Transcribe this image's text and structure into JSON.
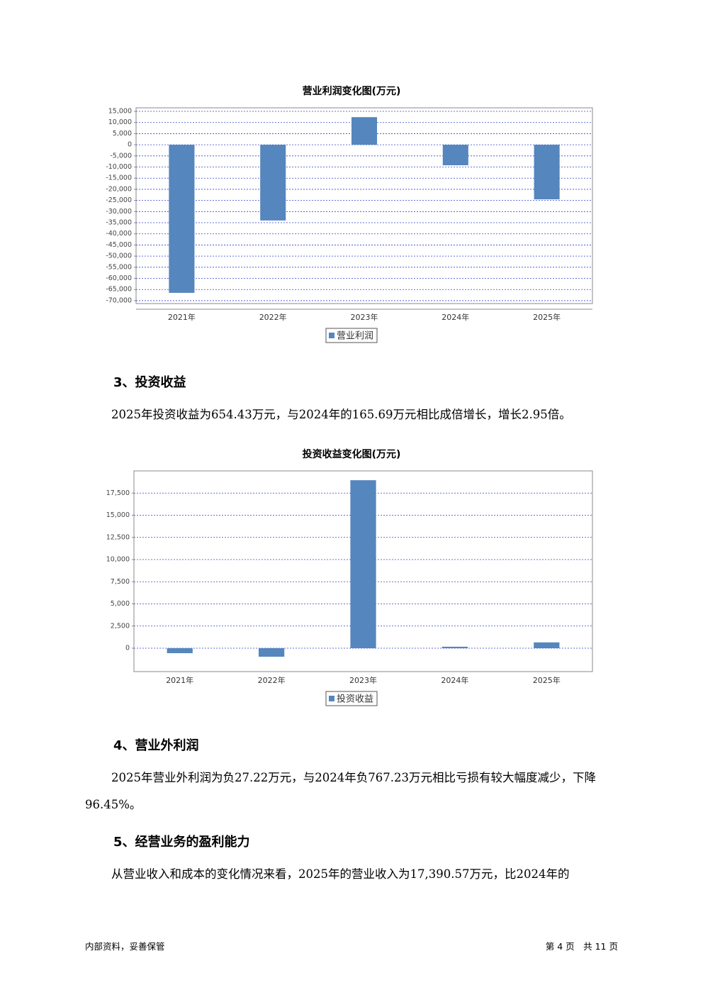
{
  "chart_data": [
    {
      "type": "bar",
      "title": "营业利润变化图(万元)",
      "categories": [
        "2021年",
        "2022年",
        "2023年",
        "2024年",
        "2025年"
      ],
      "series": [
        {
          "name": "营业利润",
          "color": "#5586bd",
          "values": [
            -66500,
            -34000,
            12400,
            -9200,
            -24500
          ]
        }
      ],
      "ylim": [
        -71300,
        16600
      ],
      "yticks": [
        {
          "value": 15000,
          "label": "15,000"
        },
        {
          "value": 10000,
          "label": "10,000"
        },
        {
          "value": 5000,
          "label": "5,000"
        },
        0,
        {
          "value": -5000,
          "label": "-5,000"
        },
        {
          "value": -10000,
          "label": "-10,000"
        },
        {
          "value": -15000,
          "label": "-15,000"
        },
        {
          "value": -20000,
          "label": "-20,000"
        },
        {
          "value": -25000,
          "label": "-25,000"
        },
        {
          "value": -30000,
          "label": "-30,000"
        },
        {
          "value": -35000,
          "label": "-35,000"
        },
        {
          "value": -40000,
          "label": "-40,000"
        },
        {
          "value": -45000,
          "label": "-45,000"
        },
        {
          "value": -50000,
          "label": "-50,000"
        },
        {
          "value": -55000,
          "label": "-55,000"
        },
        {
          "value": -60000,
          "label": "-60,000"
        },
        {
          "value": -65000,
          "label": "-65,000"
        },
        {
          "value": -70000,
          "label": "-70,000"
        }
      ],
      "grid": true
    },
    {
      "type": "bar",
      "title": "投资收益变化图(万元)",
      "categories": [
        "2021年",
        "2022年",
        "2023年",
        "2024年",
        "2025年"
      ],
      "series": [
        {
          "name": "投资收益",
          "color": "#5586bd",
          "values": [
            -560,
            -960,
            18950,
            165.69,
            654.43
          ]
        }
      ],
      "ylim": [
        -2640,
        20000
      ],
      "yticks": [
        0,
        {
          "value": 2500,
          "label": "2,500"
        },
        {
          "value": 5000,
          "label": "5,000"
        },
        {
          "value": 7500,
          "label": "7,500"
        },
        {
          "value": 10000,
          "label": "10,000"
        },
        {
          "value": 12500,
          "label": "12,500"
        },
        {
          "value": 15000,
          "label": "15,000"
        },
        {
          "value": 17500,
          "label": "17,500"
        }
      ],
      "grid": true
    }
  ],
  "sections": [
    {
      "heading": "3、投资收益",
      "text": "2025年投资收益为654.43万元，与2024年的165.69万元相比成倍增长，增长2.95倍。"
    },
    {
      "heading": "4、营业外利润",
      "text": "2025年营业外利润为负27.22万元，与2024年负767.23万元相比亏损有较大幅度减少，下降96.45%。"
    },
    {
      "heading": "5、经营业务的盈利能力",
      "text": "从营业收入和成本的变化情况来看，2025年的营业收入为17,390.57万元，比2024年的"
    }
  ],
  "footer": {
    "left": "内部资料，妥善保管",
    "right": "第 4 页　共 11 页"
  }
}
